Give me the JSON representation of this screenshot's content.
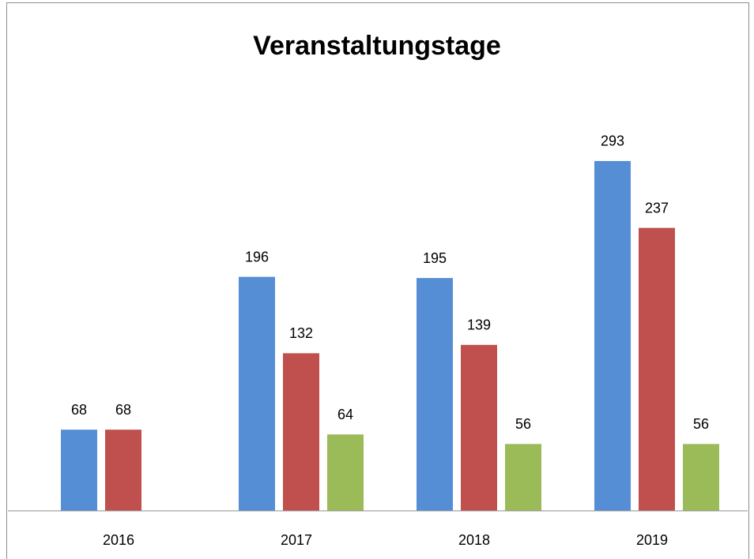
{
  "chart_data": {
    "type": "bar",
    "title": "Veranstaltungstage",
    "categories": [
      "2016",
      "2017",
      "2018",
      "2019"
    ],
    "series": [
      {
        "color": "#558ed5",
        "values": [
          68,
          196,
          195,
          293
        ]
      },
      {
        "color": "#c0504d",
        "values": [
          68,
          132,
          139,
          237
        ]
      },
      {
        "color": "#9bbb59",
        "values": [
          null,
          64,
          56,
          56
        ]
      }
    ],
    "ylim": [
      0,
      330
    ]
  }
}
